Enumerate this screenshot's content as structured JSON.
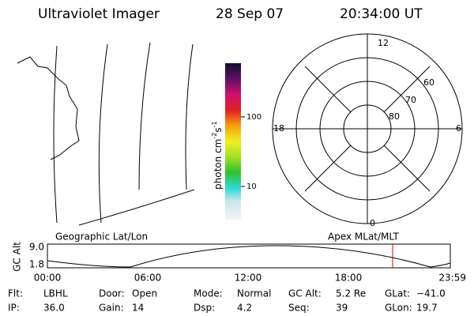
{
  "header": {
    "title": "Ultraviolet Imager",
    "date": "28 Sep 07",
    "time": "20:34:00 UT"
  },
  "map": {
    "label": "Geographic Lat/Lon"
  },
  "colorbar": {
    "unit": [
      "photon cm",
      "-2",
      "s",
      "-1"
    ],
    "ticks": [
      "100",
      "10"
    ]
  },
  "polar": {
    "label": "Apex MLat/MLT",
    "hours": [
      "12",
      "18",
      "6",
      "0"
    ],
    "latitudes": [
      "60",
      "70",
      "80"
    ]
  },
  "altitude": {
    "ylabel": "GC Alt",
    "yticks": [
      "9.0",
      "1.8"
    ],
    "xticks": [
      "00:00",
      "06:00",
      "12:00",
      "18:00",
      "23:59"
    ]
  },
  "footer": {
    "rows": [
      [
        [
          "Flt:",
          "LBHL"
        ],
        [
          "Door:",
          "Open"
        ],
        [
          "Mode:",
          "Normal"
        ],
        [
          "GC Alt:",
          "5.2 Re"
        ],
        [
          "GLat:",
          "−41.0"
        ]
      ],
      [
        [
          "IP:",
          "36.0"
        ],
        [
          "Gain:",
          "14"
        ],
        [
          "Dsp:",
          "4.2"
        ],
        [
          "Seq:",
          "39"
        ],
        [
          "GLon:",
          "19.7"
        ]
      ]
    ]
  }
}
